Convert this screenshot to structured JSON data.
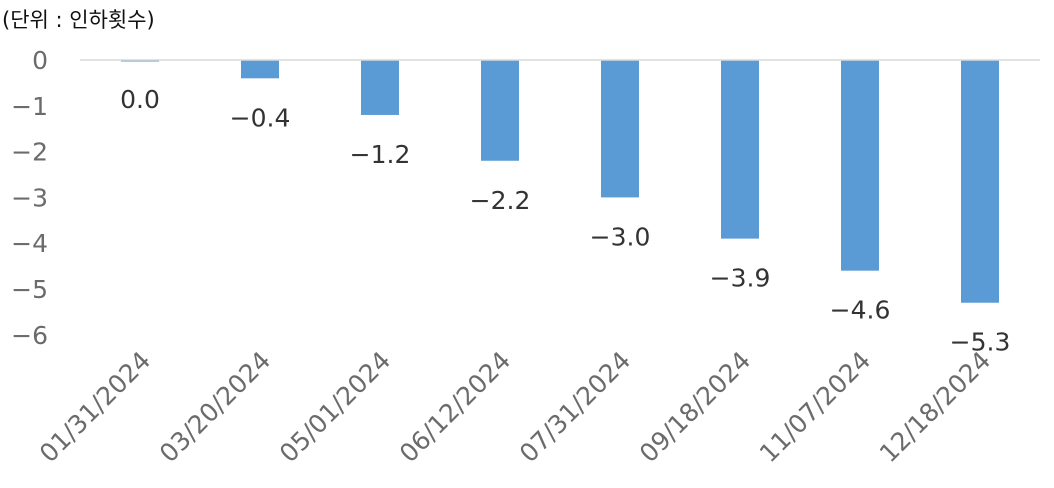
{
  "chart_data": {
    "type": "bar",
    "unit_label": "(단위 : 인하횟수)",
    "categories": [
      "01/31/2024",
      "03/20/2024",
      "05/01/2024",
      "06/12/2024",
      "07/31/2024",
      "09/18/2024",
      "11/07/2024",
      "12/18/2024"
    ],
    "values": [
      0.0,
      -0.4,
      -1.2,
      -2.2,
      -3.0,
      -3.9,
      -4.6,
      -5.3
    ],
    "data_labels": [
      "0.0",
      "-0.4",
      "-1.2",
      "-2.2",
      "-3.0",
      "-3.9",
      "-4.6",
      "-5.3"
    ],
    "y_ticks": [
      0,
      -1,
      -2,
      -3,
      -4,
      -5,
      -6
    ],
    "y_tick_labels": [
      "0",
      "-1",
      "-2",
      "-3",
      "-4",
      "-5",
      "-6"
    ],
    "ylim": [
      -6,
      0
    ],
    "grid": false,
    "legend": "none",
    "bar_color": "#5b9bd5",
    "axis_color": "#d9d9d9",
    "title": "",
    "xlabel": "",
    "ylabel": ""
  }
}
